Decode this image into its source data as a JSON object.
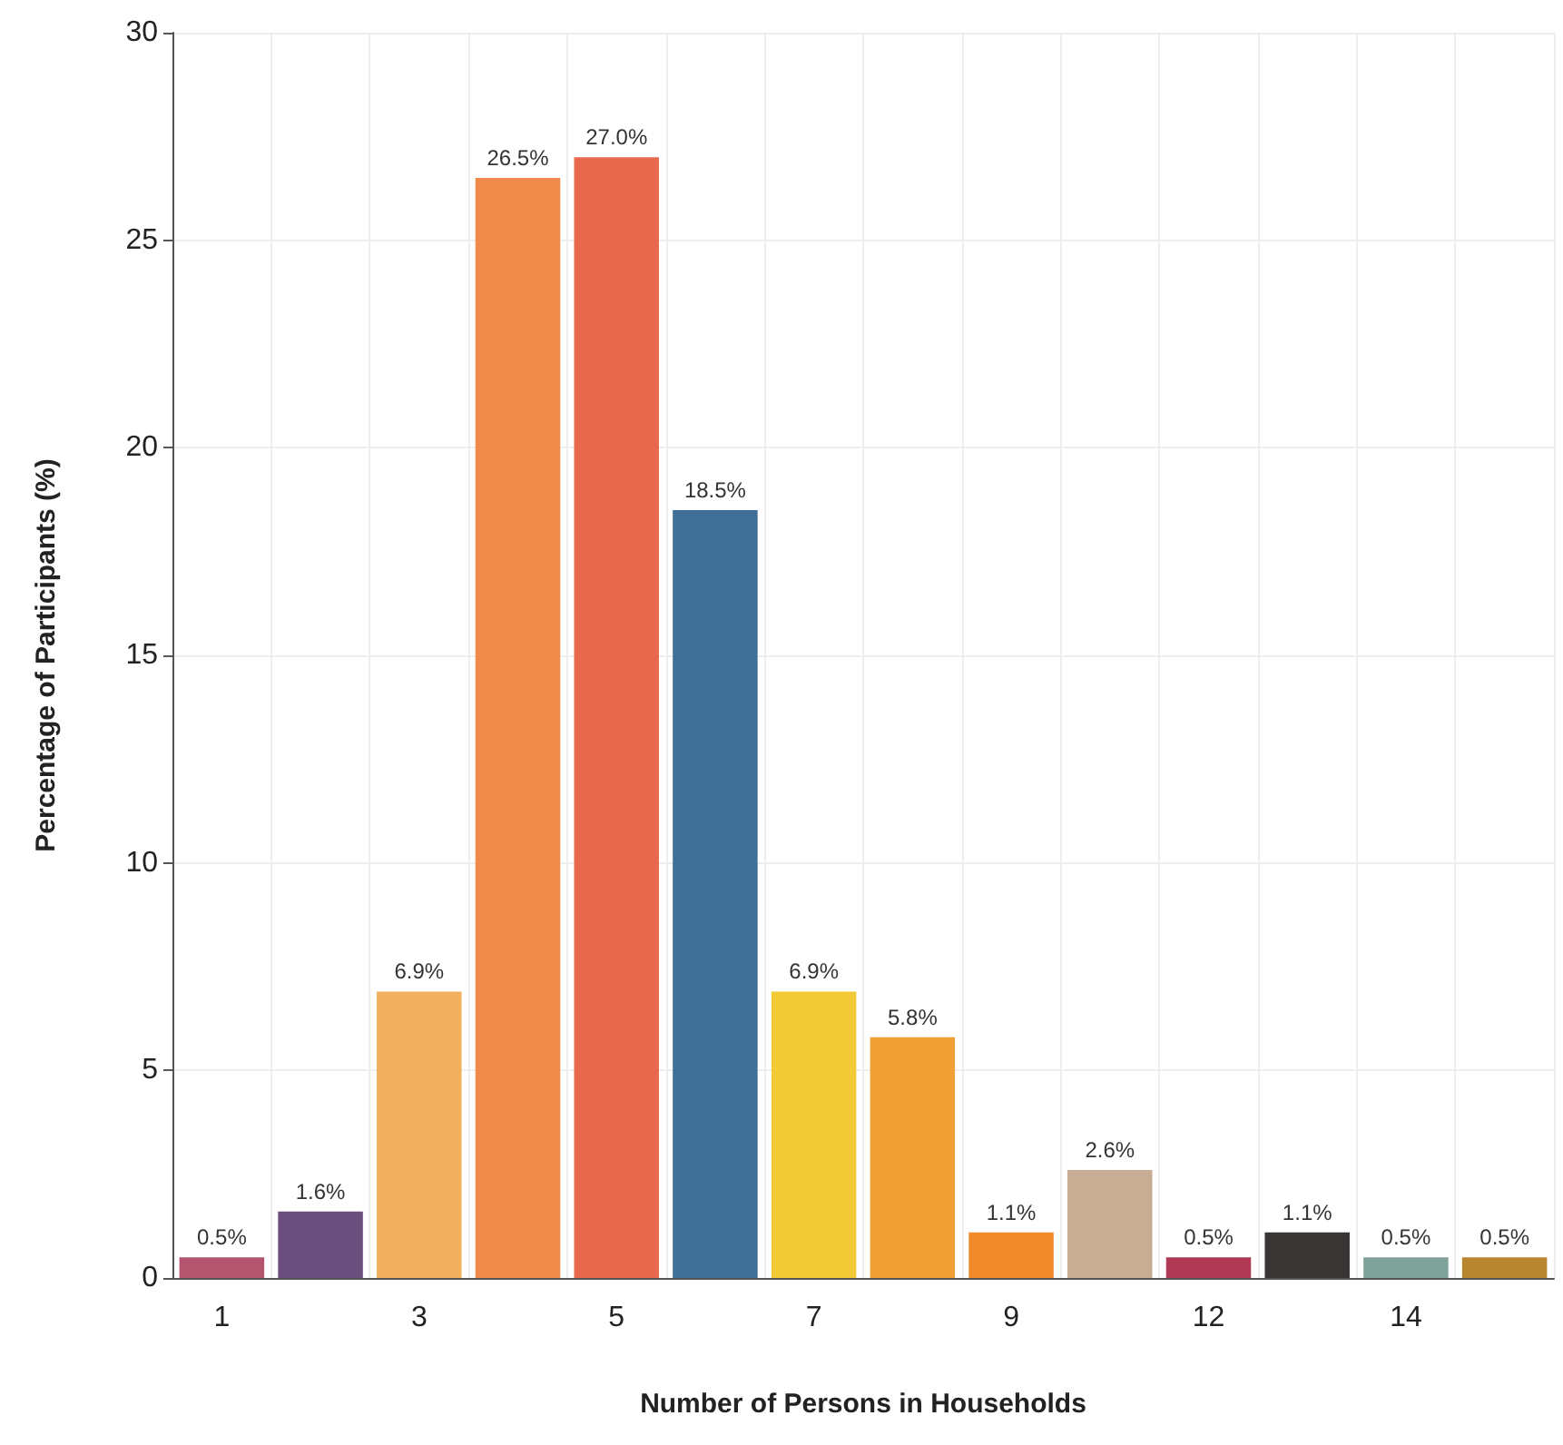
{
  "chart_data": {
    "type": "bar",
    "xlabel": "Number of Persons in Households",
    "ylabel": "Percentage of Participants (%)",
    "categories": [
      "1",
      null,
      "3",
      null,
      "5",
      null,
      "7",
      null,
      "9",
      null,
      "12",
      null,
      "14",
      null
    ],
    "values": [
      0.5,
      1.6,
      6.9,
      26.5,
      27.0,
      18.5,
      6.9,
      5.8,
      1.1,
      2.6,
      0.5,
      1.1,
      0.5,
      0.5
    ],
    "value_labels": [
      "0.5%",
      "1.6%",
      "6.9%",
      "26.5%",
      "27.0%",
      "18.5%",
      "6.9%",
      "5.8%",
      "1.1%",
      "2.6%",
      "0.5%",
      "1.1%",
      "0.5%",
      "0.5%"
    ],
    "colors": [
      "#b5546e",
      "#6b4f7e",
      "#f2b05e",
      "#ef8a4a",
      "#e8694e",
      "#3f6e97",
      "#f2ca35",
      "#f0a035",
      "#f08a2a",
      "#c7ad93",
      "#b03a55",
      "#3a3535",
      "#7fa39b",
      "#b8862e"
    ],
    "ylim": [
      0,
      30
    ],
    "yticks": [
      0,
      5,
      10,
      15,
      20,
      25,
      30
    ],
    "grid": true
  }
}
